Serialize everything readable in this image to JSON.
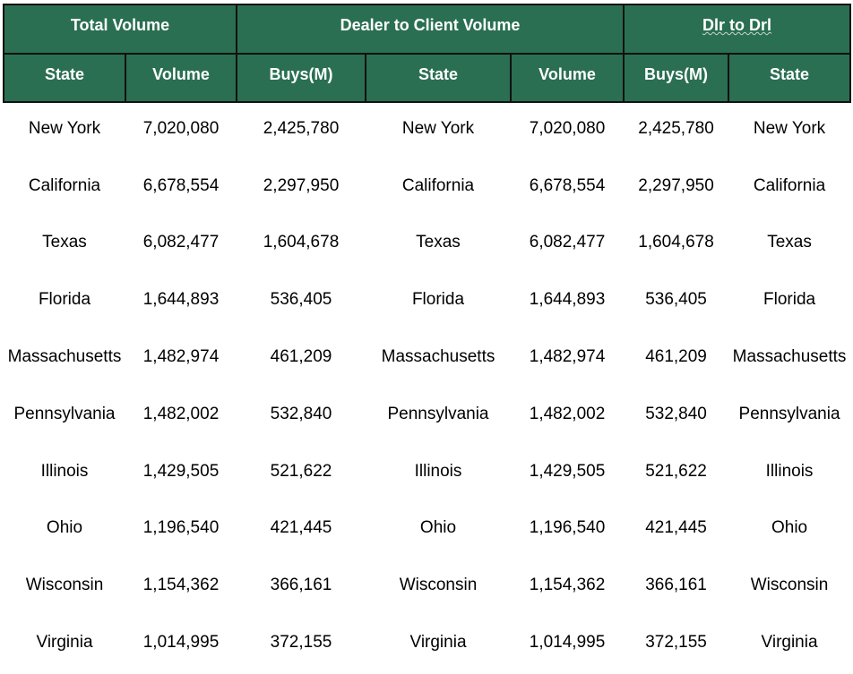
{
  "table": {
    "group_headers": [
      {
        "label": "Total Volume",
        "span": 2
      },
      {
        "label": "Dealer to Client Volume",
        "span": 3
      },
      {
        "label": "Dlr to Drl",
        "span": 2
      }
    ],
    "columns": [
      "State",
      "Volume",
      "Buys(M)",
      "State",
      "Volume",
      "Buys(M)",
      "State"
    ],
    "rows": [
      [
        "New York",
        "7,020,080",
        "2,425,780",
        "New York",
        "7,020,080",
        "2,425,780",
        "New York"
      ],
      [
        "California",
        "6,678,554",
        "2,297,950",
        "California",
        "6,678,554",
        "2,297,950",
        "California"
      ],
      [
        "Texas",
        "6,082,477",
        "1,604,678",
        "Texas",
        "6,082,477",
        "1,604,678",
        "Texas"
      ],
      [
        "Florida",
        "1,644,893",
        "536,405",
        "Florida",
        "1,644,893",
        "536,405",
        "Florida"
      ],
      [
        "Massachusetts",
        "1,482,974",
        "461,209",
        "Massachusetts",
        "1,482,974",
        "461,209",
        "Massachusetts"
      ],
      [
        "Pennsylvania",
        "1,482,002",
        "532,840",
        "Pennsylvania",
        "1,482,002",
        "532,840",
        "Pennsylvania"
      ],
      [
        "Illinois",
        "1,429,505",
        "521,622",
        "Illinois",
        "1,429,505",
        "521,622",
        "Illinois"
      ],
      [
        "Ohio",
        "1,196,540",
        "421,445",
        "Ohio",
        "1,196,540",
        "421,445",
        "Ohio"
      ],
      [
        "Wisconsin",
        "1,154,362",
        "366,161",
        "Wisconsin",
        "1,154,362",
        "366,161",
        "Wisconsin"
      ],
      [
        "Virginia",
        "1,014,995",
        "372,155",
        "Virginia",
        "1,014,995",
        "372,155",
        "Virginia"
      ]
    ]
  },
  "colors": {
    "header_bg": "#2a6f52",
    "header_text": "#ffffff",
    "border": "#111111"
  }
}
